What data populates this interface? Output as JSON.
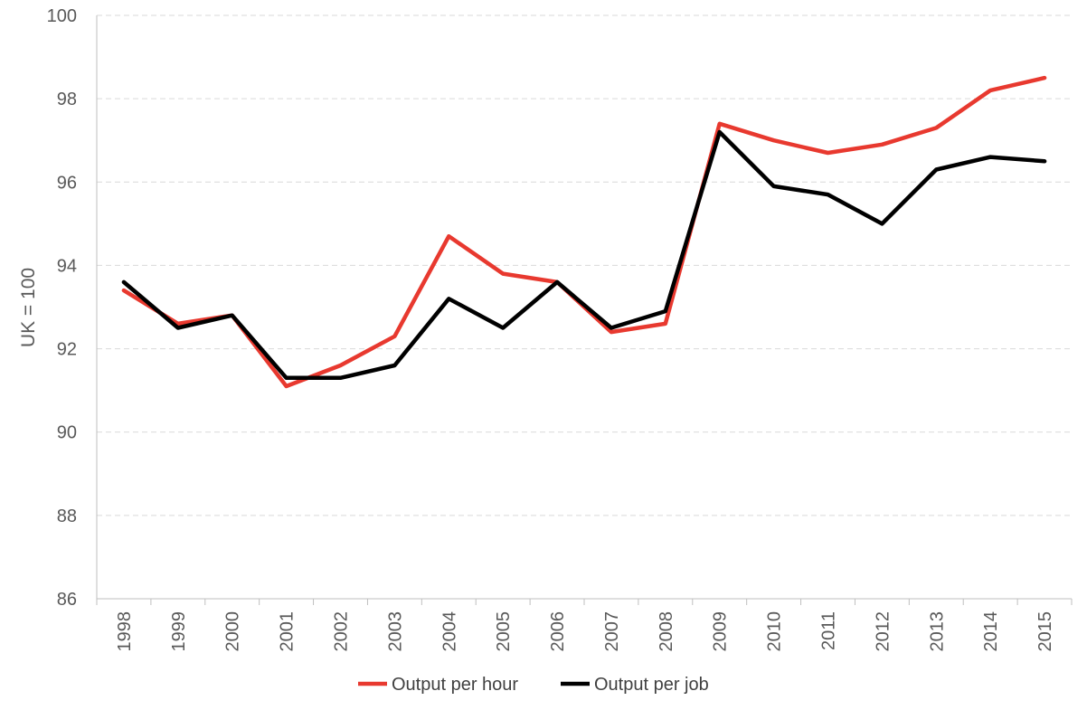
{
  "chart_data": {
    "type": "line",
    "title": "",
    "xlabel": "",
    "ylabel": "UK = 100",
    "ylim": [
      86,
      100
    ],
    "yticks": [
      86,
      88,
      90,
      92,
      94,
      96,
      98,
      100
    ],
    "grid": true,
    "legend_position": "bottom",
    "categories": [
      "1998",
      "1999",
      "2000",
      "2001",
      "2002",
      "2003",
      "2004",
      "2005",
      "2006",
      "2007",
      "2008",
      "2009",
      "2010",
      "2011",
      "2012",
      "2013",
      "2014",
      "2015"
    ],
    "series": [
      {
        "name": "Output per hour",
        "color": "#e8392f",
        "values": [
          93.4,
          92.6,
          92.8,
          91.1,
          91.6,
          92.3,
          94.7,
          93.8,
          93.6,
          92.4,
          92.6,
          97.4,
          97.0,
          96.7,
          96.9,
          97.3,
          98.2,
          98.5
        ]
      },
      {
        "name": "Output per job",
        "color": "#000000",
        "values": [
          93.6,
          92.5,
          92.8,
          91.3,
          91.3,
          91.6,
          93.2,
          92.5,
          93.6,
          92.5,
          92.9,
          97.2,
          95.9,
          95.7,
          95.0,
          96.3,
          96.6,
          96.5
        ]
      }
    ]
  }
}
